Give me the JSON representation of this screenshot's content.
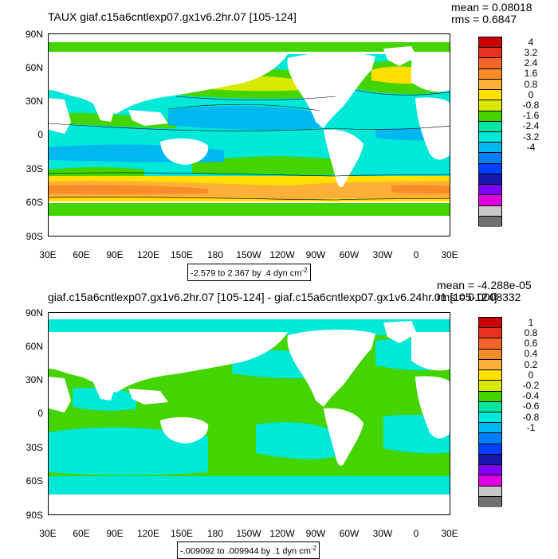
{
  "top": {
    "title": "TAUX giaf.c15a6cntlexp07.gx1v6.2hr.07 [105-124]",
    "mean": "mean = 0.08018",
    "rms": "rms = 0.6847",
    "range_main": "-2.579 to 2.367 by .4 dyn cm",
    "range_exp": "-2",
    "colorbar_labels": [
      "4",
      "3.2",
      "2.4",
      "1.6",
      "0.8",
      "0",
      "-0.8",
      "-1.6",
      "-2.4",
      "-3.2",
      "-4"
    ],
    "colorbar_colors": [
      "#cc0000",
      "#e83020",
      "#f26428",
      "#f88c28",
      "#fcb038",
      "#ffe000",
      "#d8e800",
      "#44d400",
      "#00e8a0",
      "#00e8d8",
      "#00b8f0",
      "#0080ff",
      "#0040ff",
      "#1818b0",
      "#8000ff",
      "#e000e0",
      "#c8c8c8",
      "#707070"
    ]
  },
  "bottom": {
    "title": "giaf.c15a6cntlexp07.gx1v6.2hr.07 [105-124] - giaf.c15a6cntlexp07.gx1v6.24hr.01 [105-124]",
    "mean": "mean = -4.288e-05",
    "rms": "rms = 0.0008332",
    "range_main": "-.009092 to .009944 by .1 dyn cm",
    "range_exp": "-2",
    "colorbar_labels": [
      "1",
      "0.8",
      "0.6",
      "0.4",
      "0.2",
      "0",
      "-0.2",
      "-0.4",
      "-0.6",
      "-0.8",
      "-1"
    ],
    "colorbar_colors": [
      "#cc0000",
      "#e83020",
      "#f26428",
      "#f88c28",
      "#fcb038",
      "#ffe000",
      "#d8e800",
      "#44d400",
      "#00e8a0",
      "#00e8d8",
      "#00b8f0",
      "#0080ff",
      "#0040ff",
      "#1818b0",
      "#8000ff",
      "#e000e0",
      "#c8c8c8",
      "#707070"
    ]
  },
  "axes": {
    "lat_labels": [
      "90N",
      "60N",
      "30N",
      "0",
      "30S",
      "60S",
      "90S"
    ],
    "lon_labels": [
      "30E",
      "60E",
      "90E",
      "120E",
      "150E",
      "180",
      "150W",
      "120W",
      "90W",
      "60W",
      "30W",
      "0",
      "30E"
    ]
  },
  "colors": {
    "green": "#44d400",
    "aqua": "#00e8d8",
    "lightgreen": "#d8e800",
    "yellow": "#ffe000",
    "gold": "#fcb038",
    "orange": "#f88c28",
    "darkorange": "#f26428",
    "cyan": "#00b8f0",
    "blue": "#0040ff",
    "navy": "#1818b0"
  }
}
